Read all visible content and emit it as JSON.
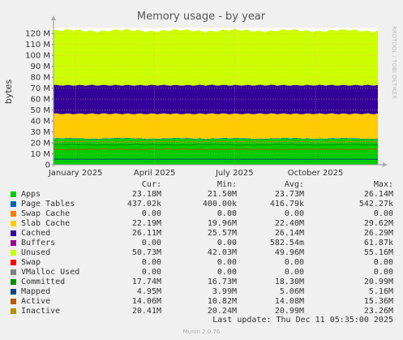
{
  "chart_data": {
    "type": "area",
    "title": "Memory usage - by year",
    "ylabel": "bytes",
    "side_text": "RRDTOOL / TOBI OETIKER",
    "ylim": [
      0,
      125000000
    ],
    "yticks": [
      0,
      10000000,
      20000000,
      30000000,
      40000000,
      50000000,
      60000000,
      70000000,
      80000000,
      90000000,
      100000000,
      110000000,
      120000000
    ],
    "ytick_labels": [
      "0",
      "10 M",
      "20 M",
      "30 M",
      "40 M",
      "50 M",
      "60 M",
      "70 M",
      "80 M",
      "90 M",
      "100 M",
      "110 M",
      "120 M"
    ],
    "xlim": [
      "2024-12-07",
      "2025-12-11"
    ],
    "xticks": [
      "2025-01-01",
      "2025-04-01",
      "2025-07-01",
      "2025-10-01"
    ],
    "xtick_labels": [
      "January 2025",
      "April 2025",
      "July 2025",
      "October 2025"
    ],
    "series": [
      {
        "name": "Apps",
        "color": "#00cc00",
        "cur": "23.18M",
        "min": "21.50M",
        "avg": "23.73M",
        "max": "26.14M"
      },
      {
        "name": "Page Tables",
        "color": "#0066b3",
        "cur": "437.02k",
        "min": "400.00k",
        "avg": "416.79k",
        "max": "542.27k"
      },
      {
        "name": "Swap Cache",
        "color": "#ff8000",
        "cur": "0.00",
        "min": "0.00",
        "avg": "0.00",
        "max": "0.00"
      },
      {
        "name": "Slab Cache",
        "color": "#ffcc00",
        "cur": "22.19M",
        "min": "19.96M",
        "avg": "22.40M",
        "max": "29.62M"
      },
      {
        "name": "Cached",
        "color": "#330099",
        "cur": "26.11M",
        "min": "25.57M",
        "avg": "26.14M",
        "max": "26.29M"
      },
      {
        "name": "Buffers",
        "color": "#990099",
        "cur": "0.00",
        "min": "0.00",
        "avg": "582.54m",
        "max": "61.87k"
      },
      {
        "name": "Unused",
        "color": "#ccff00",
        "cur": "50.73M",
        "min": "42.03M",
        "avg": "49.96M",
        "max": "55.16M"
      },
      {
        "name": "Swap",
        "color": "#ff0000",
        "cur": "0.00",
        "min": "0.00",
        "avg": "0.00",
        "max": "0.00"
      },
      {
        "name": "VMalloc Used",
        "color": "#808080",
        "cur": "0.00",
        "min": "0.00",
        "avg": "0.00",
        "max": "0.00"
      },
      {
        "name": "Committed",
        "color": "#008f00",
        "cur": "17.74M",
        "min": "16.73M",
        "avg": "18.30M",
        "max": "20.99M"
      },
      {
        "name": "Mapped",
        "color": "#00487d",
        "cur": "4.95M",
        "min": "3.99M",
        "avg": "5.06M",
        "max": "5.16M"
      },
      {
        "name": "Active",
        "color": "#b35a00",
        "cur": "14.06M",
        "min": "10.82M",
        "avg": "14.08M",
        "max": "15.36M"
      },
      {
        "name": "Inactive",
        "color": "#b38f00",
        "cur": "20.41M",
        "min": "20.24M",
        "avg": "20.99M",
        "max": "23.26M"
      }
    ]
  },
  "legend_headers": {
    "cur": "Cur:",
    "min": "Min:",
    "avg": "Avg:",
    "max": "Max:"
  },
  "last_update": "Last update: Thu Dec 11 05:35:00 2025",
  "footer": "Munin 2.0.76"
}
